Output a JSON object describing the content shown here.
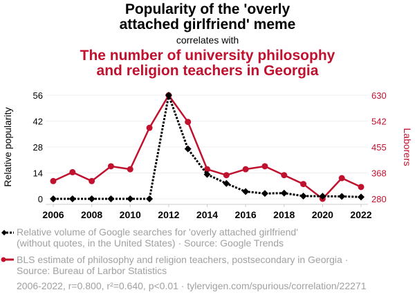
{
  "header": {
    "title_line1": "Popularity of the 'overly",
    "title_line2": "attached girlfriend' meme",
    "correlates": "correlates with",
    "subtitle_line1": "The number of university philosophy",
    "subtitle_line2": "and religion teachers in Georgia"
  },
  "chart_data": {
    "type": "line",
    "x": [
      2006,
      2007,
      2008,
      2009,
      2010,
      2011,
      2012,
      2013,
      2014,
      2015,
      2016,
      2017,
      2018,
      2019,
      2020,
      2021,
      2022
    ],
    "xticks": [
      "2006",
      "2008",
      "2010",
      "2012",
      "2014",
      "2016",
      "2018",
      "2020",
      "2022"
    ],
    "ylabel_left": "Relative popularity",
    "ylabel_right": "Laborers",
    "yticks_left": [
      "0",
      "14",
      "28",
      "42",
      "56"
    ],
    "yticks_right": [
      "280",
      "368",
      "455",
      "542",
      "630"
    ],
    "ylim_left": [
      0,
      56
    ],
    "ylim_right": [
      280,
      630
    ],
    "grid": true,
    "series": [
      {
        "name": "Relative volume of Google searches for 'overly attached girlfriend' (without quotes, in the United States) · Source: Google Trends",
        "axis": "left",
        "color": "#000000",
        "style": "dotted",
        "marker": "diamond",
        "values": [
          0,
          0,
          0,
          0,
          0,
          0,
          56,
          27,
          13.2,
          8.3,
          3.9,
          2.9,
          3.1,
          1.5,
          1.4,
          1.3,
          1.0
        ]
      },
      {
        "name": "BLS estimate of philosophy and religion teachers, postsecondary in Georgia · Source: Bureau of Larbor Statistics",
        "axis": "right",
        "color": "#c0112e",
        "style": "solid",
        "marker": "circle",
        "values": [
          340,
          370,
          340,
          390,
          380,
          520,
          630,
          540,
          380,
          360,
          380,
          390,
          360,
          330,
          280,
          350,
          320
        ]
      }
    ]
  },
  "legend": {
    "item1_line1": "Relative volume of Google searches for 'overly attached girlfriend'",
    "item1_line2": "(without quotes, in the United States) · Source: Google Trends",
    "item2_line1": "BLS estimate of philosophy and religion teachers, postsecondary in Georgia ·",
    "item2_line2": "Source: Bureau of Larbor Statistics"
  },
  "footer": "2006-2022, r=0.800, r²=0.640, p<0.01 · tylervigen.com/spurious/correlation/22271"
}
